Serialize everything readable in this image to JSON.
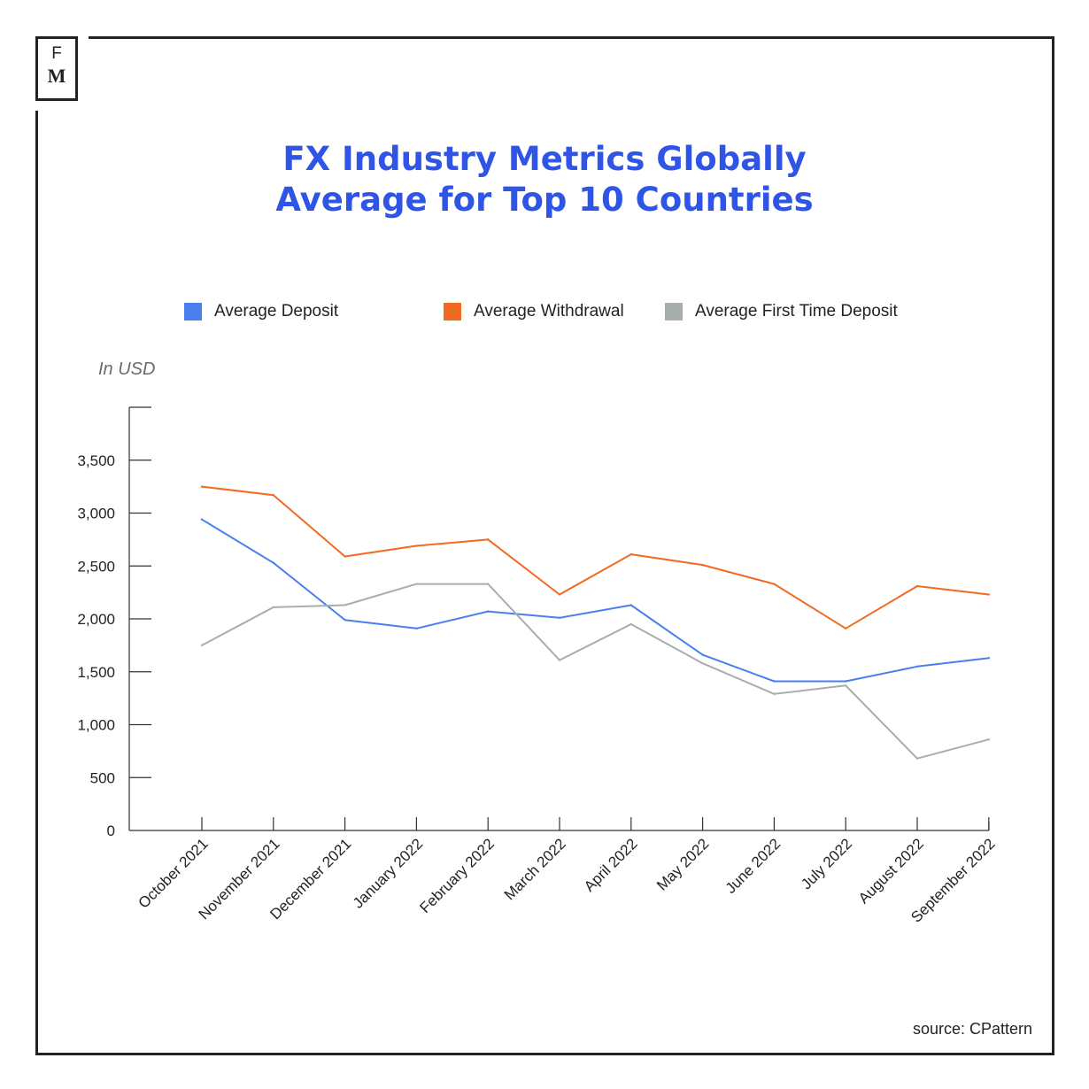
{
  "logo": {
    "line1": "F",
    "line2": "M"
  },
  "chart_data": {
    "type": "line",
    "title": "FX Industry Metrics Globally",
    "subtitle": "Average for Top 10 Countries",
    "ylabel": "In USD",
    "xlabel": "",
    "ylim": [
      0,
      4000
    ],
    "yticks": [
      0,
      500,
      1000,
      1500,
      2000,
      2500,
      3000,
      3500
    ],
    "ytick_labels": [
      "0",
      "500",
      "1,000",
      "1,500",
      "2,000",
      "2,500",
      "3,000",
      "3,500"
    ],
    "categories": [
      "October 2021",
      "November 2021",
      "December 2021",
      "January 2022",
      "February 2022",
      "March 2022",
      "April 2022",
      "May 2022",
      "June 2022",
      "July 2022",
      "August 2022",
      "September 2022"
    ],
    "grid": false,
    "legend_position": "top",
    "series": [
      {
        "name": "Average Deposit",
        "color": "#4a7ff0",
        "values": [
          2940,
          2530,
          1990,
          1910,
          2070,
          2010,
          2130,
          1660,
          1410,
          1410,
          1550,
          1630
        ]
      },
      {
        "name": "Average Withdrawal",
        "color": "#f26a21",
        "values": [
          3250,
          3170,
          2590,
          2690,
          2750,
          2230,
          2610,
          2510,
          2330,
          1910,
          2310,
          2230
        ]
      },
      {
        "name": "Average First Time Deposit",
        "color": "#a7aeac",
        "values": [
          1750,
          2110,
          2130,
          2330,
          2330,
          1610,
          1950,
          1580,
          1290,
          1370,
          680,
          860
        ]
      }
    ]
  },
  "source": "source: CPattern"
}
